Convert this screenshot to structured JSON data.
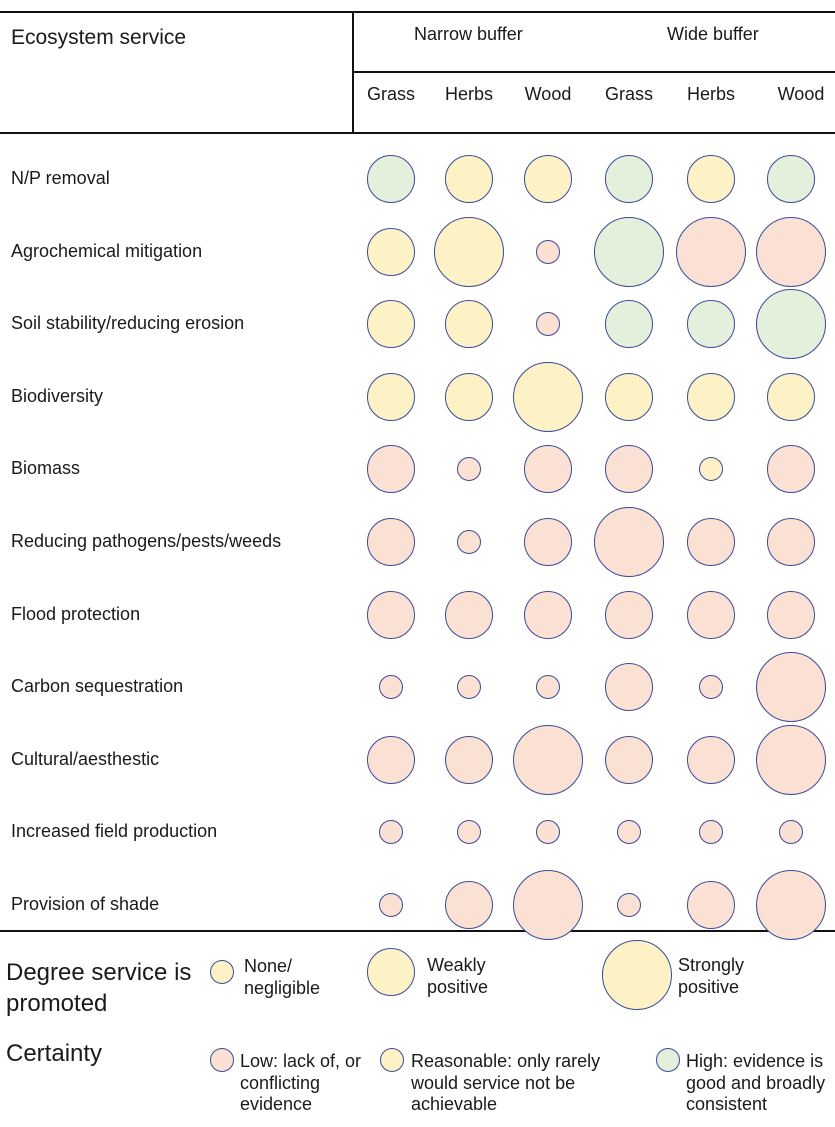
{
  "colors": {
    "none_negligible_fill": "#fdf2c6",
    "low_certainty_fill": "#fbe1d4",
    "reasonable_certainty_fill": "#fdf2c6",
    "high_certainty_fill": "#e4f0dc",
    "circle_stroke": "#3a4a9a"
  },
  "header": {
    "ecosystem_service": "Ecosystem service",
    "narrow_buffer": "Narrow buffer",
    "wide_buffer": "Wide buffer",
    "columns": [
      "Grass",
      "Herbs",
      "Wood",
      "Grass",
      "Herbs",
      "Wood"
    ]
  },
  "rows": [
    {
      "label": "N/P removal",
      "cells": [
        {
          "degree": "weak",
          "certainty": "high"
        },
        {
          "degree": "weak",
          "certainty": "reasonable"
        },
        {
          "degree": "weak",
          "certainty": "reasonable"
        },
        {
          "degree": "weak",
          "certainty": "high"
        },
        {
          "degree": "weak",
          "certainty": "reasonable"
        },
        {
          "degree": "weak",
          "certainty": "high"
        }
      ]
    },
    {
      "label": "Agrochemical mitigation",
      "cells": [
        {
          "degree": "weak",
          "certainty": "reasonable"
        },
        {
          "degree": "strong",
          "certainty": "reasonable"
        },
        {
          "degree": "none",
          "certainty": "low"
        },
        {
          "degree": "strong",
          "certainty": "high"
        },
        {
          "degree": "strong",
          "certainty": "low"
        },
        {
          "degree": "strong",
          "certainty": "low"
        }
      ]
    },
    {
      "label": "Soil stability/reducing erosion",
      "cells": [
        {
          "degree": "weak",
          "certainty": "reasonable"
        },
        {
          "degree": "weak",
          "certainty": "reasonable"
        },
        {
          "degree": "none",
          "certainty": "low"
        },
        {
          "degree": "weak",
          "certainty": "high"
        },
        {
          "degree": "weak",
          "certainty": "high"
        },
        {
          "degree": "strong",
          "certainty": "high"
        }
      ]
    },
    {
      "label": "Biodiversity",
      "cells": [
        {
          "degree": "weak",
          "certainty": "reasonable"
        },
        {
          "degree": "weak",
          "certainty": "reasonable"
        },
        {
          "degree": "strong",
          "certainty": "reasonable"
        },
        {
          "degree": "weak",
          "certainty": "reasonable"
        },
        {
          "degree": "weak",
          "certainty": "reasonable"
        },
        {
          "degree": "weak",
          "certainty": "reasonable"
        }
      ]
    },
    {
      "label": "Biomass",
      "cells": [
        {
          "degree": "weak",
          "certainty": "low"
        },
        {
          "degree": "none",
          "certainty": "low"
        },
        {
          "degree": "weak",
          "certainty": "low"
        },
        {
          "degree": "weak",
          "certainty": "low"
        },
        {
          "degree": "none",
          "certainty": "reasonable"
        },
        {
          "degree": "weak",
          "certainty": "low"
        }
      ]
    },
    {
      "label": "Reducing pathogens/pests/weeds",
      "cells": [
        {
          "degree": "weak",
          "certainty": "low"
        },
        {
          "degree": "none",
          "certainty": "low"
        },
        {
          "degree": "weak",
          "certainty": "low"
        },
        {
          "degree": "strong",
          "certainty": "low"
        },
        {
          "degree": "weak",
          "certainty": "low"
        },
        {
          "degree": "weak",
          "certainty": "low"
        }
      ]
    },
    {
      "label": "Flood protection",
      "cells": [
        {
          "degree": "weak",
          "certainty": "low"
        },
        {
          "degree": "weak",
          "certainty": "low"
        },
        {
          "degree": "weak",
          "certainty": "low"
        },
        {
          "degree": "weak",
          "certainty": "low"
        },
        {
          "degree": "weak",
          "certainty": "low"
        },
        {
          "degree": "weak",
          "certainty": "low"
        }
      ]
    },
    {
      "label": "Carbon sequestration",
      "cells": [
        {
          "degree": "none",
          "certainty": "low"
        },
        {
          "degree": "none",
          "certainty": "low"
        },
        {
          "degree": "none",
          "certainty": "low"
        },
        {
          "degree": "weak",
          "certainty": "low"
        },
        {
          "degree": "none",
          "certainty": "low"
        },
        {
          "degree": "strong",
          "certainty": "low"
        }
      ]
    },
    {
      "label": "Cultural/aesthestic",
      "cells": [
        {
          "degree": "weak",
          "certainty": "low"
        },
        {
          "degree": "weak",
          "certainty": "low"
        },
        {
          "degree": "strong",
          "certainty": "low"
        },
        {
          "degree": "weak",
          "certainty": "low"
        },
        {
          "degree": "weak",
          "certainty": "low"
        },
        {
          "degree": "strong",
          "certainty": "low"
        }
      ]
    },
    {
      "label": "Increased field production",
      "cells": [
        {
          "degree": "none",
          "certainty": "low"
        },
        {
          "degree": "none",
          "certainty": "low"
        },
        {
          "degree": "none",
          "certainty": "low"
        },
        {
          "degree": "none",
          "certainty": "low"
        },
        {
          "degree": "none",
          "certainty": "low"
        },
        {
          "degree": "none",
          "certainty": "low"
        }
      ]
    },
    {
      "label": "Provision of shade",
      "cells": [
        {
          "degree": "none",
          "certainty": "low"
        },
        {
          "degree": "weak",
          "certainty": "low"
        },
        {
          "degree": "strong",
          "certainty": "low"
        },
        {
          "degree": "none",
          "certainty": "low"
        },
        {
          "degree": "weak",
          "certainty": "low"
        },
        {
          "degree": "strong",
          "certainty": "low"
        }
      ]
    }
  ],
  "legend": {
    "degree_title": "Degree service is promoted",
    "degree_items": [
      {
        "key": "none",
        "label": "None/ negligible"
      },
      {
        "key": "weak",
        "label": "Weakly positive"
      },
      {
        "key": "strong",
        "label": "Strongly positive"
      }
    ],
    "certainty_title": "Certainty",
    "certainty_items": [
      {
        "key": "low",
        "label": "Low: lack of, or conflicting evidence"
      },
      {
        "key": "reasonable",
        "label": "Reasonable: only rarely would service not be achievable"
      },
      {
        "key": "high",
        "label": "High: evidence is good and broadly consistent"
      }
    ]
  }
}
